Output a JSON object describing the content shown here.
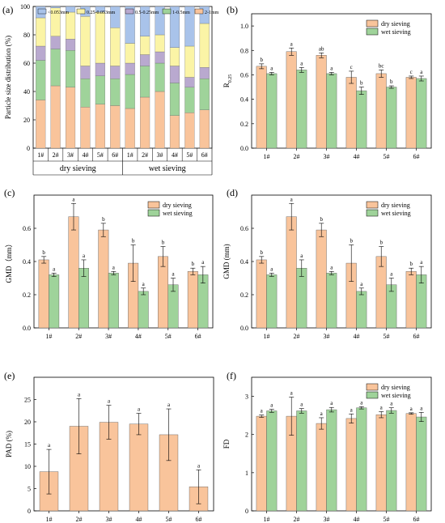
{
  "colors": {
    "dry": "#f9c49b",
    "wet": "#9fd39a",
    "c2_1": "#f9c49b",
    "c1_05": "#9fd39a",
    "c05_025": "#b9a9cf",
    "c025_0053": "#fbf4a6",
    "clt0053": "#a9c3ea"
  },
  "chart_data": [
    {
      "panel": "(a)",
      "type": "bar",
      "stacked": true,
      "ylabel": "Particle size distribution (%)",
      "ylim": [
        0,
        100
      ],
      "yticks": [
        0,
        20,
        40,
        60,
        80,
        100
      ],
      "categories": [
        "1#",
        "2#",
        "3#",
        "4#",
        "5#",
        "6#"
      ],
      "groups": [
        "dry sieving",
        "wet sieving"
      ],
      "series": [
        {
          "name": "2-1mm",
          "dry": [
            34,
            44,
            43,
            29,
            31,
            30
          ],
          "wet": [
            28,
            36,
            40,
            23,
            25,
            27
          ]
        },
        {
          "name": "1-0.5mm",
          "dry": [
            28,
            26,
            26,
            20,
            20,
            19
          ],
          "wet": [
            24,
            22,
            20,
            23,
            18,
            22
          ]
        },
        {
          "name": "0.5-0.25mm",
          "dry": [
            10,
            9,
            8,
            9,
            9,
            9
          ],
          "wet": [
            8,
            8,
            8,
            12,
            7,
            8
          ]
        },
        {
          "name": "0.25-0.053mm",
          "dry": [
            20,
            20,
            19,
            35,
            36,
            27
          ],
          "wet": [
            14,
            13,
            12,
            13,
            22,
            31
          ]
        },
        {
          "name": "<0.053mm",
          "dry": [
            8,
            1,
            4,
            7,
            4,
            15
          ],
          "wet": [
            26,
            21,
            20,
            29,
            28,
            12
          ]
        }
      ]
    },
    {
      "panel": "(b)",
      "type": "bar",
      "ylabel": "R",
      "ylabel_sub": "0.25",
      "ylim": [
        0.0,
        1.1
      ],
      "yticks": [
        "0.0",
        "0.2",
        "0.4",
        "0.6",
        "0.8",
        "1.0"
      ],
      "categories": [
        "1#",
        "2#",
        "3#",
        "4#",
        "5#",
        "6#"
      ],
      "legend": "top-right",
      "series": [
        {
          "name": "dry sieving",
          "values": [
            0.67,
            0.79,
            0.76,
            0.58,
            0.61,
            0.58
          ],
          "errors": [
            0.02,
            0.03,
            0.02,
            0.05,
            0.03,
            0.01
          ],
          "labels": [
            "b",
            "a",
            "ab",
            "c",
            "bc",
            "c"
          ]
        },
        {
          "name": "wet sieving",
          "values": [
            0.61,
            0.64,
            0.61,
            0.47,
            0.5,
            0.57
          ],
          "errors": [
            0.01,
            0.02,
            0.01,
            0.03,
            0.01,
            0.02
          ],
          "labels": [
            "a",
            "a",
            "a",
            "b",
            "b",
            "a"
          ]
        }
      ]
    },
    {
      "panel": "(c)",
      "type": "bar",
      "ylabel": "GMD（mm）",
      "ylim": [
        0.0,
        0.8
      ],
      "yticks": [
        "0.0",
        "0.2",
        "0.4",
        "0.6"
      ],
      "categories": [
        "1#",
        "2#",
        "3#",
        "4#",
        "5#",
        "6#"
      ],
      "legend": "top-right",
      "series": [
        {
          "name": "dry sieving",
          "values": [
            0.41,
            0.67,
            0.59,
            0.39,
            0.43,
            0.34
          ],
          "errors": [
            0.02,
            0.08,
            0.04,
            0.11,
            0.06,
            0.02
          ],
          "labels": [
            "b",
            "a",
            "b",
            "b",
            "b",
            "b"
          ]
        },
        {
          "name": "wet sieving",
          "values": [
            0.32,
            0.36,
            0.33,
            0.22,
            0.26,
            0.32
          ],
          "errors": [
            0.01,
            0.05,
            0.01,
            0.02,
            0.04,
            0.05
          ],
          "labels": [
            "a",
            "a",
            "a",
            "a",
            "a",
            "a"
          ]
        }
      ]
    },
    {
      "panel": "(d)",
      "type": "bar",
      "ylabel": "GMD (mm)",
      "ylim": [
        0.0,
        0.8
      ],
      "yticks": [
        "0.0",
        "0.2",
        "0.4",
        "0.6"
      ],
      "categories": [
        "1#",
        "2#",
        "3#",
        "4#",
        "5#",
        "6#"
      ],
      "legend": "top-right",
      "series": [
        {
          "name": "dry sieving",
          "values": [
            0.41,
            0.67,
            0.59,
            0.39,
            0.43,
            0.34
          ],
          "errors": [
            0.02,
            0.08,
            0.04,
            0.11,
            0.06,
            0.02
          ],
          "labels": [
            "b",
            "a",
            "b",
            "b",
            "b",
            "b"
          ]
        },
        {
          "name": "wet sieving",
          "values": [
            0.32,
            0.36,
            0.33,
            0.22,
            0.26,
            0.32
          ],
          "errors": [
            0.01,
            0.05,
            0.01,
            0.02,
            0.04,
            0.05
          ],
          "labels": [
            "a",
            "a",
            "a",
            "a",
            "a",
            "a"
          ]
        }
      ]
    },
    {
      "panel": "(e)",
      "type": "bar",
      "ylabel": "PAD (%)",
      "ylim": [
        0,
        30
      ],
      "yticks": [
        "0",
        "5",
        "10",
        "15",
        "20",
        "25"
      ],
      "categories": [
        "1#",
        "2#",
        "3#",
        "4#",
        "5#",
        "6#"
      ],
      "series": [
        {
          "values": [
            8.8,
            19.0,
            19.9,
            19.5,
            17.1,
            5.4
          ],
          "errors": [
            5.0,
            6.2,
            3.8,
            2.4,
            5.8,
            3.8
          ],
          "labels": [
            "a",
            "a",
            "a",
            "a",
            "a",
            "a"
          ]
        }
      ]
    },
    {
      "panel": "(f)",
      "type": "bar",
      "ylabel": "FD",
      "ylim": [
        0,
        3.5
      ],
      "yticks": [
        "0",
        "1",
        "2",
        "3"
      ],
      "categories": [
        "1#",
        "2#",
        "3#",
        "4#",
        "5#",
        "6#"
      ],
      "legend": "top-right",
      "series": [
        {
          "name": "dry sieving",
          "values": [
            2.48,
            2.48,
            2.29,
            2.42,
            2.52,
            2.55
          ],
          "errors": [
            0.03,
            0.5,
            0.15,
            0.12,
            0.08,
            0.02
          ],
          "labels": [
            "a",
            "a",
            "a",
            "a",
            "a",
            "a"
          ]
        },
        {
          "name": "wet sieving",
          "values": [
            2.62,
            2.62,
            2.65,
            2.7,
            2.63,
            2.46
          ],
          "errors": [
            0.04,
            0.06,
            0.06,
            0.03,
            0.07,
            0.12
          ],
          "labels": [
            "a",
            "a",
            "a",
            "a",
            "a",
            "a"
          ]
        }
      ]
    }
  ]
}
